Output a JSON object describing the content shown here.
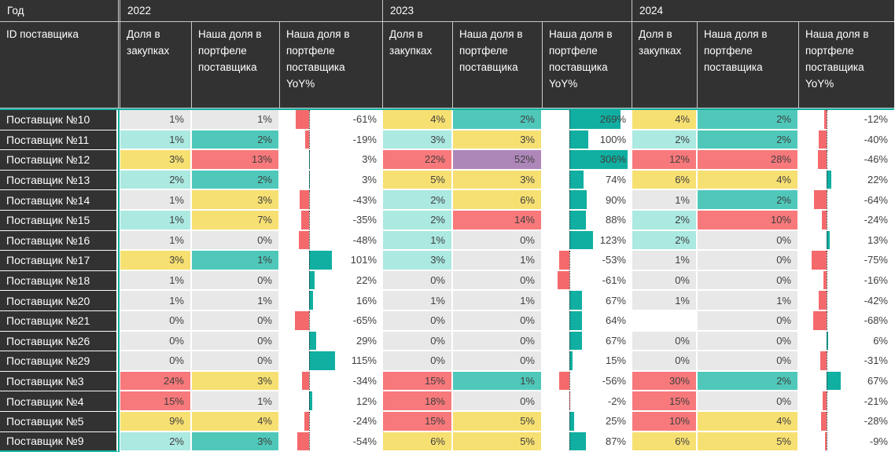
{
  "colors": {
    "header_bg": "#323232",
    "header_text": "#ffffff",
    "header_border": "#c9c9c9",
    "accent_teal": "#10AFA1",
    "bar_positive": "#10AFA1",
    "bar_negative": "#F4696B",
    "value_text": "#3F3F3F",
    "cell_colors": {
      "gray": "#E8E8E8",
      "teal_light": "#ABE9E1",
      "teal": "#4FC8BA",
      "yellow": "#F7E072",
      "red": "#F8797B",
      "purple": "#AE87B9",
      "blank": "#FFFFFF"
    }
  },
  "chart_data": {
    "type": "table",
    "year_header": "Год",
    "row_header": "ID поставщика",
    "years": [
      "2022",
      "2023",
      "2024"
    ],
    "measures": [
      "Доля в закупках",
      "Наша доля в портфеле поставщика",
      "Наша доля в портфеле поставщика YoY%"
    ],
    "yoy_axis": {
      "min": -75,
      "max": 306,
      "zero_line": "dotted"
    },
    "rows": [
      {
        "supplier": "Поставщик №10",
        "cells": [
          {
            "v": "1%",
            "c": "gray"
          },
          {
            "v": "1%",
            "c": "gray"
          },
          {
            "v": "-61%",
            "yoy": -61
          },
          {
            "v": "4%",
            "c": "yellow"
          },
          {
            "v": "2%",
            "c": "teal"
          },
          {
            "v": "269%",
            "yoy": 269
          },
          {
            "v": "4%",
            "c": "yellow"
          },
          {
            "v": "2%",
            "c": "teal"
          },
          {
            "v": "-12%",
            "yoy": -12
          }
        ]
      },
      {
        "supplier": "Поставщик №11",
        "cells": [
          {
            "v": "1%",
            "c": "teal_light"
          },
          {
            "v": "2%",
            "c": "teal"
          },
          {
            "v": "-19%",
            "yoy": -19
          },
          {
            "v": "3%",
            "c": "teal_light"
          },
          {
            "v": "3%",
            "c": "yellow"
          },
          {
            "v": "100%",
            "yoy": 100
          },
          {
            "v": "2%",
            "c": "teal_light"
          },
          {
            "v": "2%",
            "c": "teal"
          },
          {
            "v": "-40%",
            "yoy": -40
          }
        ]
      },
      {
        "supplier": "Поставщик №12",
        "cells": [
          {
            "v": "3%",
            "c": "yellow"
          },
          {
            "v": "13%",
            "c": "red"
          },
          {
            "v": "3%",
            "yoy": 3
          },
          {
            "v": "22%",
            "c": "red"
          },
          {
            "v": "52%",
            "c": "purple"
          },
          {
            "v": "306%",
            "yoy": 306
          },
          {
            "v": "12%",
            "c": "red"
          },
          {
            "v": "28%",
            "c": "red"
          },
          {
            "v": "-46%",
            "yoy": -46
          }
        ]
      },
      {
        "supplier": "Поставщик №13",
        "cells": [
          {
            "v": "2%",
            "c": "teal_light"
          },
          {
            "v": "2%",
            "c": "teal"
          },
          {
            "v": "3%",
            "yoy": 3
          },
          {
            "v": "5%",
            "c": "yellow"
          },
          {
            "v": "3%",
            "c": "yellow"
          },
          {
            "v": "74%",
            "yoy": 74
          },
          {
            "v": "6%",
            "c": "yellow"
          },
          {
            "v": "4%",
            "c": "yellow"
          },
          {
            "v": "22%",
            "yoy": 22
          }
        ]
      },
      {
        "supplier": "Поставщик №14",
        "cells": [
          {
            "v": "1%",
            "c": "gray"
          },
          {
            "v": "3%",
            "c": "yellow"
          },
          {
            "v": "-43%",
            "yoy": -43
          },
          {
            "v": "2%",
            "c": "teal_light"
          },
          {
            "v": "6%",
            "c": "yellow"
          },
          {
            "v": "90%",
            "yoy": 90
          },
          {
            "v": "1%",
            "c": "gray"
          },
          {
            "v": "2%",
            "c": "teal"
          },
          {
            "v": "-64%",
            "yoy": -64
          }
        ]
      },
      {
        "supplier": "Поставщик №15",
        "cells": [
          {
            "v": "1%",
            "c": "teal_light"
          },
          {
            "v": "7%",
            "c": "yellow"
          },
          {
            "v": "-35%",
            "yoy": -35
          },
          {
            "v": "2%",
            "c": "teal_light"
          },
          {
            "v": "14%",
            "c": "red"
          },
          {
            "v": "88%",
            "yoy": 88
          },
          {
            "v": "2%",
            "c": "teal_light"
          },
          {
            "v": "10%",
            "c": "red"
          },
          {
            "v": "-24%",
            "yoy": -24
          }
        ]
      },
      {
        "supplier": "Поставщик №16",
        "cells": [
          {
            "v": "1%",
            "c": "gray"
          },
          {
            "v": "0%",
            "c": "gray"
          },
          {
            "v": "-48%",
            "yoy": -48
          },
          {
            "v": "1%",
            "c": "teal_light"
          },
          {
            "v": "0%",
            "c": "gray"
          },
          {
            "v": "123%",
            "yoy": 123
          },
          {
            "v": "2%",
            "c": "teal_light"
          },
          {
            "v": "0%",
            "c": "gray"
          },
          {
            "v": "13%",
            "yoy": 13
          }
        ]
      },
      {
        "supplier": "Поставщик №17",
        "cells": [
          {
            "v": "3%",
            "c": "yellow"
          },
          {
            "v": "1%",
            "c": "teal"
          },
          {
            "v": "101%",
            "yoy": 101
          },
          {
            "v": "3%",
            "c": "teal_light"
          },
          {
            "v": "1%",
            "c": "gray"
          },
          {
            "v": "-53%",
            "yoy": -53
          },
          {
            "v": "1%",
            "c": "gray"
          },
          {
            "v": "0%",
            "c": "gray"
          },
          {
            "v": "-75%",
            "yoy": -75
          }
        ]
      },
      {
        "supplier": "Поставщик №18",
        "cells": [
          {
            "v": "1%",
            "c": "gray"
          },
          {
            "v": "0%",
            "c": "gray"
          },
          {
            "v": "22%",
            "yoy": 22
          },
          {
            "v": "0%",
            "c": "gray"
          },
          {
            "v": "0%",
            "c": "gray"
          },
          {
            "v": "-61%",
            "yoy": -61
          },
          {
            "v": "0%",
            "c": "gray"
          },
          {
            "v": "0%",
            "c": "gray"
          },
          {
            "v": "-16%",
            "yoy": -16
          }
        ]
      },
      {
        "supplier": "Поставщик №20",
        "cells": [
          {
            "v": "1%",
            "c": "gray"
          },
          {
            "v": "1%",
            "c": "gray"
          },
          {
            "v": "16%",
            "yoy": 16
          },
          {
            "v": "1%",
            "c": "gray"
          },
          {
            "v": "1%",
            "c": "gray"
          },
          {
            "v": "67%",
            "yoy": 67
          },
          {
            "v": "1%",
            "c": "gray"
          },
          {
            "v": "1%",
            "c": "gray"
          },
          {
            "v": "-42%",
            "yoy": -42
          }
        ]
      },
      {
        "supplier": "Поставщик №21",
        "cells": [
          {
            "v": "0%",
            "c": "gray"
          },
          {
            "v": "0%",
            "c": "gray"
          },
          {
            "v": "-65%",
            "yoy": -65
          },
          {
            "v": "0%",
            "c": "gray"
          },
          {
            "v": "0%",
            "c": "gray"
          },
          {
            "v": "64%",
            "yoy": 64
          },
          {
            "v": "",
            "c": "blank"
          },
          {
            "v": "0%",
            "c": "gray"
          },
          {
            "v": "-68%",
            "yoy": -68
          }
        ]
      },
      {
        "supplier": "Поставщик №26",
        "cells": [
          {
            "v": "0%",
            "c": "gray"
          },
          {
            "v": "0%",
            "c": "gray"
          },
          {
            "v": "29%",
            "yoy": 29
          },
          {
            "v": "0%",
            "c": "gray"
          },
          {
            "v": "0%",
            "c": "gray"
          },
          {
            "v": "67%",
            "yoy": 67
          },
          {
            "v": "0%",
            "c": "gray"
          },
          {
            "v": "0%",
            "c": "gray"
          },
          {
            "v": "6%",
            "yoy": 6
          }
        ]
      },
      {
        "supplier": "Поставщик №29",
        "cells": [
          {
            "v": "0%",
            "c": "gray"
          },
          {
            "v": "0%",
            "c": "gray"
          },
          {
            "v": "115%",
            "yoy": 115
          },
          {
            "v": "0%",
            "c": "gray"
          },
          {
            "v": "0%",
            "c": "gray"
          },
          {
            "v": "15%",
            "yoy": 15
          },
          {
            "v": "0%",
            "c": "gray"
          },
          {
            "v": "0%",
            "c": "gray"
          },
          {
            "v": "-31%",
            "yoy": -31
          }
        ]
      },
      {
        "supplier": "Поставщик №3",
        "cells": [
          {
            "v": "24%",
            "c": "red"
          },
          {
            "v": "3%",
            "c": "yellow"
          },
          {
            "v": "-34%",
            "yoy": -34
          },
          {
            "v": "15%",
            "c": "red"
          },
          {
            "v": "1%",
            "c": "teal"
          },
          {
            "v": "-56%",
            "yoy": -56
          },
          {
            "v": "30%",
            "c": "red"
          },
          {
            "v": "2%",
            "c": "teal"
          },
          {
            "v": "67%",
            "yoy": 67
          }
        ]
      },
      {
        "supplier": "Поставщик №4",
        "cells": [
          {
            "v": "15%",
            "c": "red"
          },
          {
            "v": "1%",
            "c": "gray"
          },
          {
            "v": "12%",
            "yoy": 12
          },
          {
            "v": "18%",
            "c": "red"
          },
          {
            "v": "0%",
            "c": "gray"
          },
          {
            "v": "-2%",
            "yoy": -2
          },
          {
            "v": "15%",
            "c": "red"
          },
          {
            "v": "0%",
            "c": "gray"
          },
          {
            "v": "-21%",
            "yoy": -21
          }
        ]
      },
      {
        "supplier": "Поставщик №5",
        "cells": [
          {
            "v": "9%",
            "c": "yellow"
          },
          {
            "v": "4%",
            "c": "yellow"
          },
          {
            "v": "-24%",
            "yoy": -24
          },
          {
            "v": "15%",
            "c": "red"
          },
          {
            "v": "5%",
            "c": "yellow"
          },
          {
            "v": "25%",
            "yoy": 25
          },
          {
            "v": "10%",
            "c": "red"
          },
          {
            "v": "4%",
            "c": "yellow"
          },
          {
            "v": "-28%",
            "yoy": -28
          }
        ]
      },
      {
        "supplier": "Поставщик №9",
        "cells": [
          {
            "v": "2%",
            "c": "teal_light"
          },
          {
            "v": "3%",
            "c": "teal"
          },
          {
            "v": "-54%",
            "yoy": -54
          },
          {
            "v": "6%",
            "c": "yellow"
          },
          {
            "v": "5%",
            "c": "yellow"
          },
          {
            "v": "87%",
            "yoy": 87
          },
          {
            "v": "6%",
            "c": "yellow"
          },
          {
            "v": "5%",
            "c": "yellow"
          },
          {
            "v": "-9%",
            "yoy": -9
          }
        ]
      }
    ]
  }
}
